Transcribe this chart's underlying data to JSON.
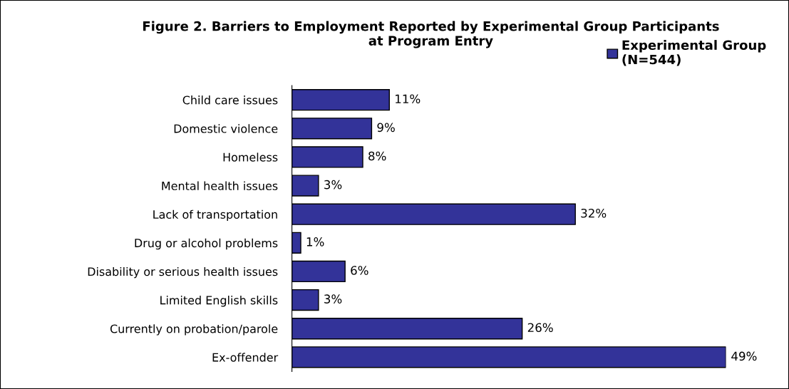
{
  "chart_data": {
    "type": "bar",
    "orientation": "horizontal",
    "title": "Figure 2. Barriers to Employment Reported by Experimental Group Participants\nat Program Entry",
    "categories": [
      "Child care issues",
      "Domestic violence",
      "Homeless",
      "Mental health issues",
      "Lack of transportation",
      "Drug or alcohol problems",
      "Disability or serious health issues",
      "Limited English skills",
      "Currently on probation/parole",
      "Ex-offender"
    ],
    "series": [
      {
        "name": "Experimental Group\n(N=544)",
        "color": "#333399",
        "values": [
          11,
          9,
          8,
          3,
          32,
          1,
          6,
          3,
          26,
          49
        ],
        "value_labels": [
          "11%",
          "9%",
          "8%",
          "3%",
          "32%",
          "1%",
          "6%",
          "3%",
          "26%",
          "49%"
        ]
      }
    ],
    "legend": "top right",
    "grid": false
  }
}
